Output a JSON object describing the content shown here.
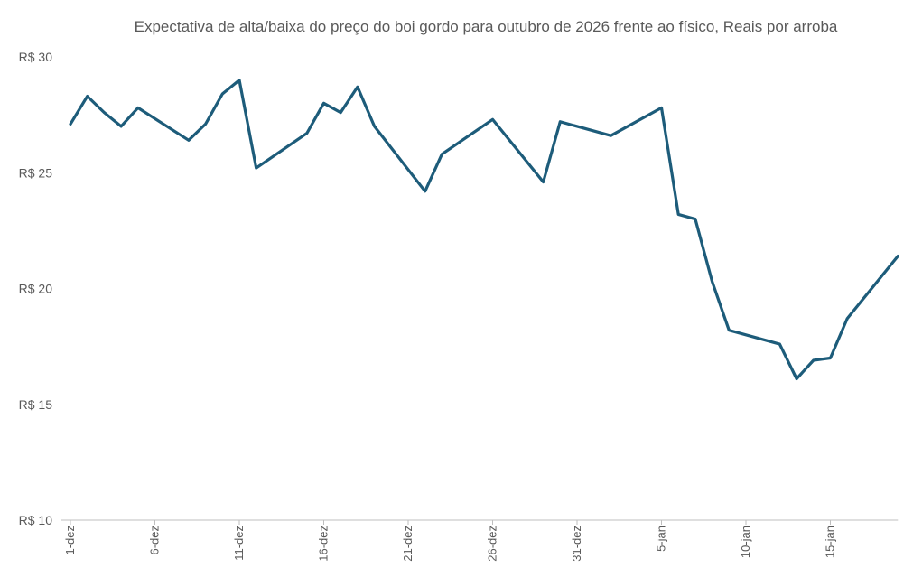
{
  "chart_data": {
    "type": "line",
    "title": "Expectativa de alta/baixa do preço do boi gordo para outubro de 2026 frente ao físico, Reais por arroba",
    "xlabel": "",
    "ylabel": "",
    "ylim": [
      10,
      30
    ],
    "yticks": [
      {
        "value": 10,
        "label": "R$ 10"
      },
      {
        "value": 15,
        "label": "R$ 15"
      },
      {
        "value": 20,
        "label": "R$ 20"
      },
      {
        "value": 25,
        "label": "R$ 25"
      },
      {
        "value": 30,
        "label": "R$ 30"
      }
    ],
    "xlim": [
      0,
      49
    ],
    "xticks": [
      {
        "day": 0,
        "label": "1-dez"
      },
      {
        "day": 5,
        "label": "6-dez"
      },
      {
        "day": 10,
        "label": "11-dez"
      },
      {
        "day": 15,
        "label": "16-dez"
      },
      {
        "day": 20,
        "label": "21-dez"
      },
      {
        "day": 25,
        "label": "26-dez"
      },
      {
        "day": 30,
        "label": "31-dez"
      },
      {
        "day": 35,
        "label": "5-jan"
      },
      {
        "day": 40,
        "label": "10-jan"
      },
      {
        "day": 45,
        "label": "15-jan"
      }
    ],
    "legend": "none",
    "grid": false,
    "color": "#1d5c7a",
    "series": [
      {
        "x": [
          0,
          1,
          2,
          3,
          4,
          7,
          8,
          9,
          10,
          11,
          14,
          15,
          16,
          17,
          18,
          21,
          22,
          25,
          28,
          29,
          32,
          35,
          36,
          37,
          38,
          39,
          42,
          43,
          44,
          45,
          46,
          49
        ],
        "values": [
          27.1,
          28.3,
          27.6,
          27.0,
          27.8,
          26.4,
          27.1,
          28.4,
          29.0,
          25.2,
          26.7,
          28.0,
          27.6,
          28.7,
          27.0,
          24.2,
          25.8,
          27.3,
          24.6,
          27.2,
          26.6,
          27.8,
          23.2,
          23.0,
          20.3,
          18.2,
          17.6,
          16.1,
          16.9,
          17.0,
          18.7,
          21.4
        ]
      }
    ]
  }
}
